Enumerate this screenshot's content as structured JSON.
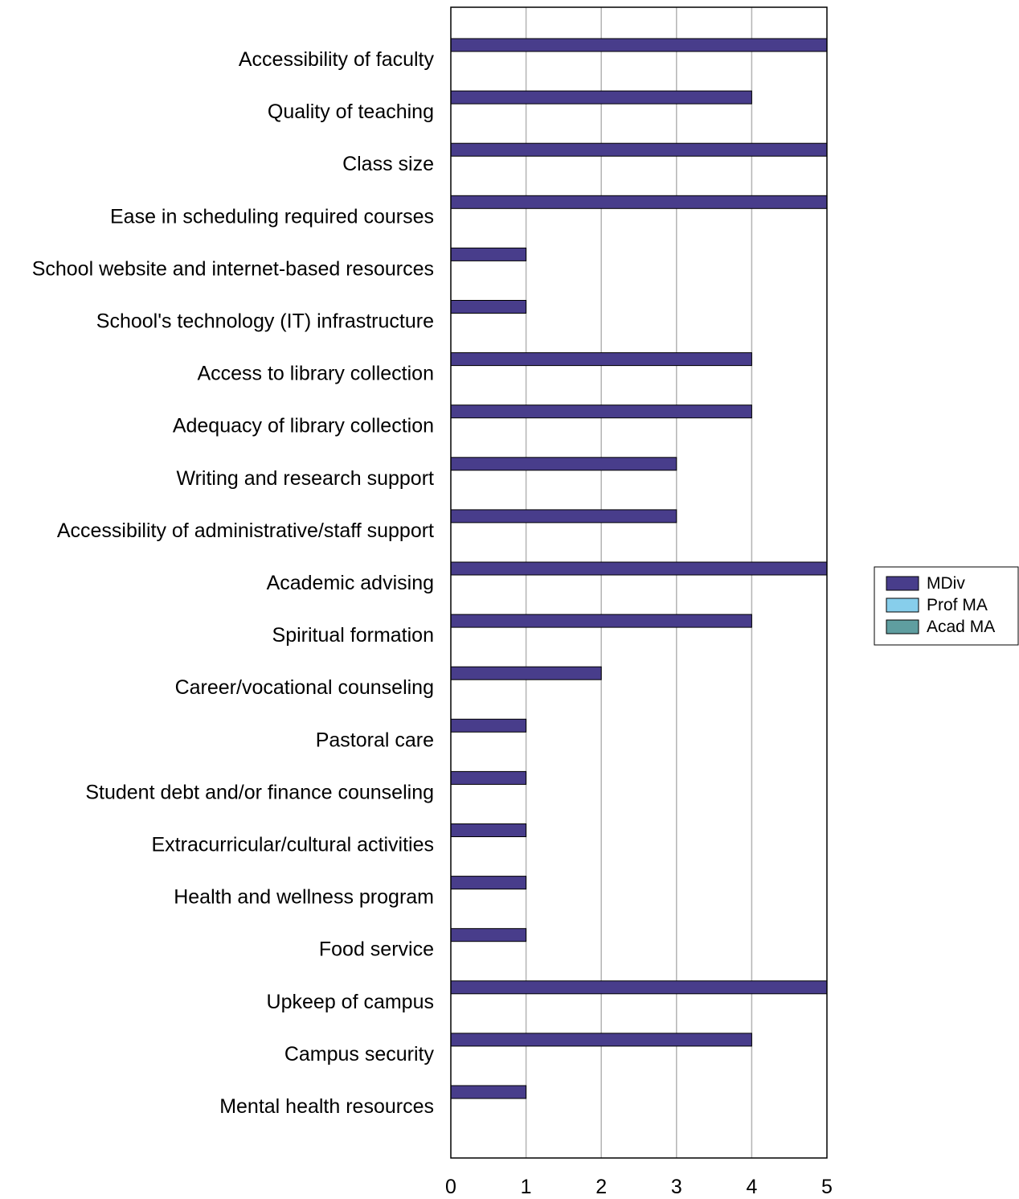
{
  "chart_data": {
    "type": "bar",
    "orientation": "horizontal",
    "title": "",
    "xlabel": "",
    "ylabel": "",
    "xlim": [
      0,
      5
    ],
    "xticks": [
      "0",
      "1",
      "2",
      "3",
      "4",
      "5"
    ],
    "grid": "vertical",
    "legend_position": "right",
    "categories": [
      "Accessibility of faculty",
      "Quality of teaching",
      "Class size",
      "Ease in scheduling required courses",
      "School website and internet-based resources",
      "School's technology (IT) infrastructure",
      "Access to library collection",
      "Adequacy of library collection",
      "Writing and research support",
      "Accessibility of administrative/staff support",
      "Academic advising",
      "Spiritual formation",
      "Career/vocational counseling",
      "Pastoral care",
      "Student debt and/or finance counseling",
      "Extracurricular/cultural activities",
      "Health and wellness program",
      "Food service",
      "Upkeep of campus",
      "Campus security",
      "Mental health resources"
    ],
    "series": [
      {
        "name": "MDiv",
        "color": "#483d8b",
        "values": [
          5,
          4,
          5,
          5,
          1,
          1,
          4,
          4,
          3,
          3,
          5,
          4,
          2,
          1,
          1,
          1,
          1,
          1,
          5,
          4,
          1
        ]
      },
      {
        "name": "Prof MA",
        "color": "#87ceeb",
        "values": [
          0,
          0,
          0,
          0,
          0,
          0,
          0,
          0,
          0,
          0,
          0,
          0,
          0,
          0,
          0,
          0,
          0,
          0,
          0,
          0,
          0
        ]
      },
      {
        "name": "Acad MA",
        "color": "#5f9ea0",
        "values": [
          0,
          0,
          0,
          0,
          0,
          0,
          0,
          0,
          0,
          0,
          0,
          0,
          0,
          0,
          0,
          0,
          0,
          0,
          0,
          0,
          0
        ]
      }
    ]
  }
}
